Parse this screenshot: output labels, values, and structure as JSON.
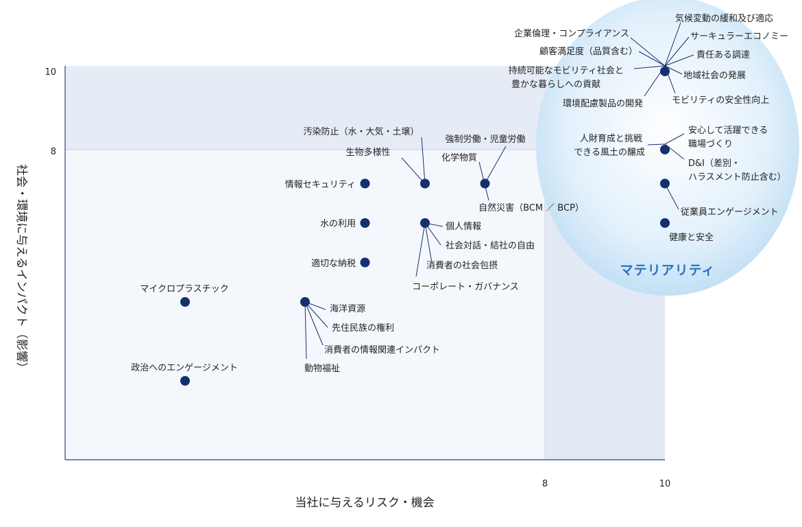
{
  "chart_data": {
    "type": "scatter",
    "xlabel": "当社に与えるリスク・機会",
    "ylabel": "社会・環境に与えるインパクト（影響）",
    "x_ticks": [
      "8",
      "10"
    ],
    "y_ticks": [
      "10",
      "8"
    ],
    "xlim": [
      0,
      10
    ],
    "ylim": [
      0,
      10
    ],
    "highlight_region_label": "マテリアリティ",
    "points": [
      {
        "x": 10,
        "y": 10,
        "labels": [
          "気候変動の緩和及び適応",
          "サーキュラーエコノミー",
          "責任ある調達",
          "地域社会の発展",
          "モビリティの安全性向上",
          "企業倫理・コンプライアンス",
          "顧客満足度（品質含む）",
          "持続可能なモビリティ社会と豊かな暮らしへの貢献",
          "環境配慮製品の開発"
        ]
      },
      {
        "x": 10,
        "y": 8,
        "labels": [
          "人財育成と挑戦できる風土の醸成",
          "安心して活躍できる職場づくり",
          "D&I（差別・ハラスメント防止含む）"
        ]
      },
      {
        "x": 10,
        "y": 7,
        "labels": [
          "従業員エンゲージメント"
        ]
      },
      {
        "x": 10,
        "y": 6,
        "labels": [
          "健康と安全"
        ]
      },
      {
        "x": 7,
        "y": 7,
        "labels": [
          "強制労働・児童労働",
          "化学物質",
          "自然災害（BCM ／ BCP）"
        ]
      },
      {
        "x": 6,
        "y": 7,
        "labels": [
          "汚染防止（水・大気・土壌）",
          "生物多様性"
        ]
      },
      {
        "x": 6,
        "y": 6,
        "labels": [
          "個人情報",
          "社会対話・結社の自由",
          "消費者の社会包摂",
          "コーポレート・ガバナンス"
        ]
      },
      {
        "x": 5,
        "y": 7,
        "labels": [
          "情報セキュリティ"
        ]
      },
      {
        "x": 5,
        "y": 6,
        "labels": [
          "水の利用"
        ]
      },
      {
        "x": 5,
        "y": 5,
        "labels": [
          "適切な納税"
        ]
      },
      {
        "x": 4,
        "y": 4,
        "labels": [
          "海洋資源",
          "先住民族の権利",
          "消費者の情報関連インパクト",
          "動物福祉"
        ]
      },
      {
        "x": 2,
        "y": 4,
        "labels": [
          "マイクロプラスチック"
        ]
      },
      {
        "x": 2,
        "y": 2,
        "labels": [
          "政治へのエンゲージメント"
        ]
      }
    ]
  },
  "colors": {
    "dot": "#15306e",
    "materiality_fill": "#cfe6f7",
    "materiality_text": "#2a6fc0",
    "top_band": "#e6ecf6",
    "plot_area": "#f4f7fc",
    "right_band": "#e3e9f4",
    "axis": "#2c3f7c"
  }
}
